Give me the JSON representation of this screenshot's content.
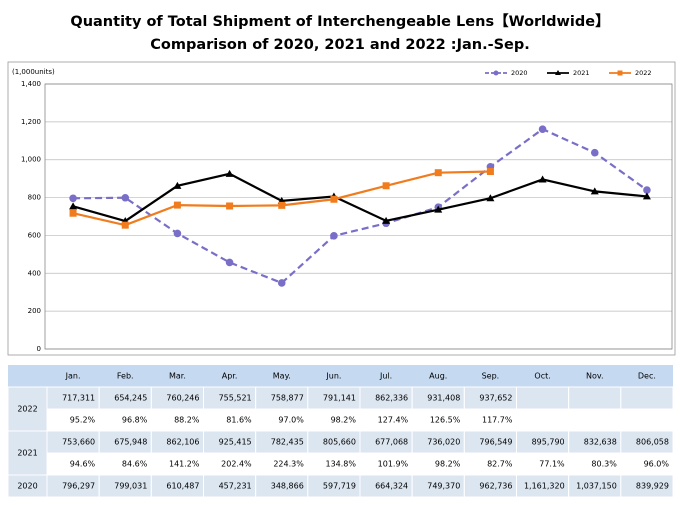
{
  "chart_data": {
    "type": "line",
    "title": "Quantity of Total Shipment of Interchengeable Lens【Worldwide】",
    "subtitle": "Comparison of 2020, 2021 and 2022 :Jan.-Sep.",
    "y_unit_label": "(1,000units)",
    "categories": [
      "Jan.",
      "Feb.",
      "Mar.",
      "Apr.",
      "May.",
      "Jun.",
      "Jul.",
      "Aug.",
      "Sep.",
      "Oct.",
      "Nov.",
      "Dec."
    ],
    "ylim": [
      0,
      1400
    ],
    "yticks": [
      0,
      200,
      400,
      600,
      800,
      {
        "value": 1000,
        "label": "1,000"
      },
      {
        "value": 1200,
        "label": "1,200"
      },
      {
        "value": 1400,
        "label": "1,400"
      }
    ],
    "grid": true,
    "legend": "top-right",
    "series": [
      {
        "name": "2020",
        "color": "#7a6fc8",
        "dash": true,
        "marker": "circle",
        "values": [
          796.297,
          799.031,
          610.487,
          457.231,
          348.866,
          597.719,
          664.324,
          749.37,
          962.736,
          1161.32,
          1037.15,
          839.929
        ],
        "value_labels": [
          "796,297",
          "799,031",
          "610,487",
          "457,231",
          "348,866",
          "597,719",
          "664,324",
          "749,370",
          "962,736",
          "1,161,320",
          "1,037,150",
          "839,929"
        ]
      },
      {
        "name": "2021",
        "color": "#000000",
        "dash": false,
        "marker": "triangle",
        "values": [
          753.66,
          675.948,
          862.106,
          925.415,
          782.435,
          805.66,
          677.068,
          736.02,
          796.549,
          895.79,
          832.638,
          806.058
        ],
        "value_labels": [
          "753,660",
          "675,948",
          "862,106",
          "925,415",
          "782,435",
          "805,660",
          "677,068",
          "736,020",
          "796,549",
          "895,790",
          "832,638",
          "806,058"
        ],
        "ratio_labels": [
          "94.6%",
          "84.6%",
          "141.2%",
          "202.4%",
          "224.3%",
          "134.8%",
          "101.9%",
          "98.2%",
          "82.7%",
          "77.1%",
          "80.3%",
          "96.0%"
        ]
      },
      {
        "name": "2022",
        "color": "#f07c1e",
        "dash": false,
        "marker": "square",
        "values": [
          717.311,
          654.245,
          760.246,
          755.521,
          758.877,
          791.141,
          862.336,
          931.408,
          937.652,
          null,
          null,
          null
        ],
        "value_labels": [
          "717,311",
          "654,245",
          "760,246",
          "755,521",
          "758,877",
          "791,141",
          "862,336",
          "931,408",
          "937,652",
          null,
          null,
          null
        ],
        "ratio_labels": [
          "95.2%",
          "96.8%",
          "88.2%",
          "81.6%",
          "97.0%",
          "98.2%",
          "127.4%",
          "126.5%",
          "117.7%",
          null,
          null,
          null
        ]
      }
    ]
  }
}
